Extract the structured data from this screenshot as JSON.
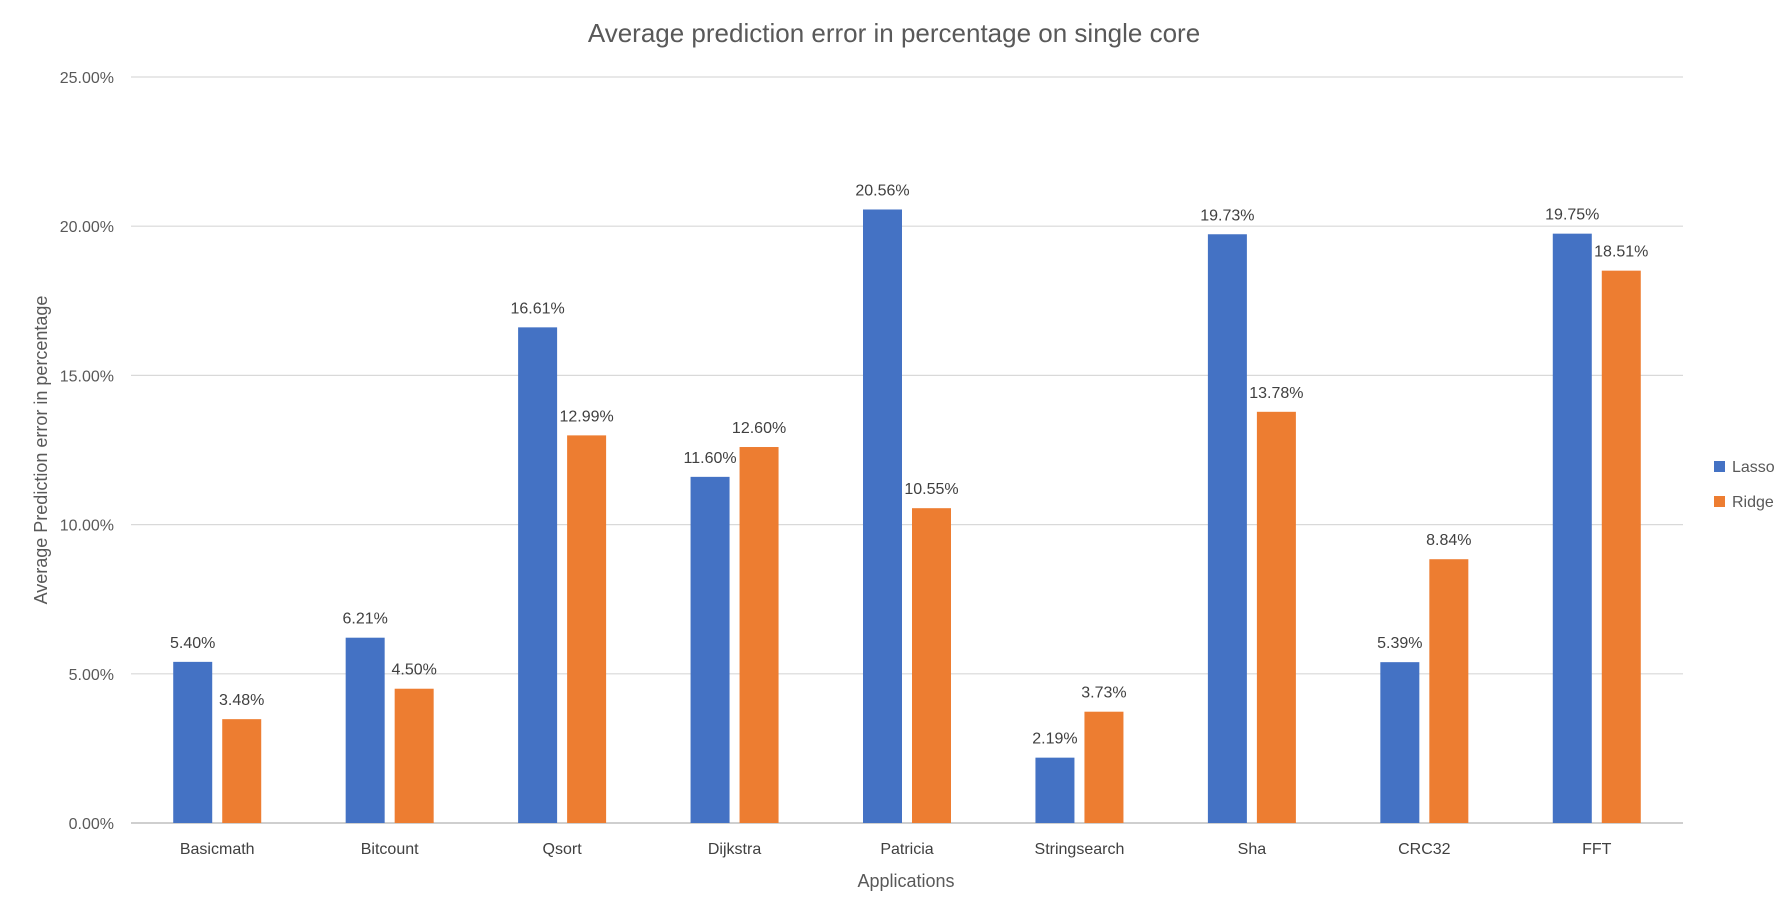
{
  "chart_data": {
    "type": "bar",
    "title": "Average prediction error in percentage on single core",
    "xlabel": "Applications",
    "ylabel": "Average  Prediction error in percentage",
    "categories": [
      "Basicmath",
      "Bitcount",
      "Qsort",
      "Dijkstra",
      "Patricia",
      "Stringsearch",
      "Sha",
      "CRC32",
      "FFT"
    ],
    "series": [
      {
        "name": "Lasso",
        "color": "#4472c4",
        "values": [
          5.4,
          6.21,
          16.61,
          11.6,
          20.56,
          2.19,
          19.73,
          5.39,
          19.75
        ],
        "labels": [
          "5.40%",
          "6.21%",
          "16.61%",
          "11.60%",
          "20.56%",
          "2.19%",
          "19.73%",
          "5.39%",
          "19.75%"
        ]
      },
      {
        "name": "Ridge",
        "color": "#ed7d31",
        "values": [
          3.48,
          4.5,
          12.99,
          12.6,
          10.55,
          3.73,
          13.78,
          8.84,
          18.51
        ],
        "labels": [
          "3.48%",
          "4.50%",
          "12.99%",
          "12.60%",
          "10.55%",
          "3.73%",
          "13.78%",
          "8.84%",
          "18.51%"
        ]
      }
    ],
    "ylim": [
      0,
      25
    ],
    "yticks": [
      0,
      5,
      10,
      15,
      20,
      25
    ],
    "ytick_labels": [
      "0.00%",
      "5.00%",
      "10.00%",
      "15.00%",
      "20.00%",
      "25.00%"
    ],
    "grid": true,
    "legend_position": "right"
  }
}
